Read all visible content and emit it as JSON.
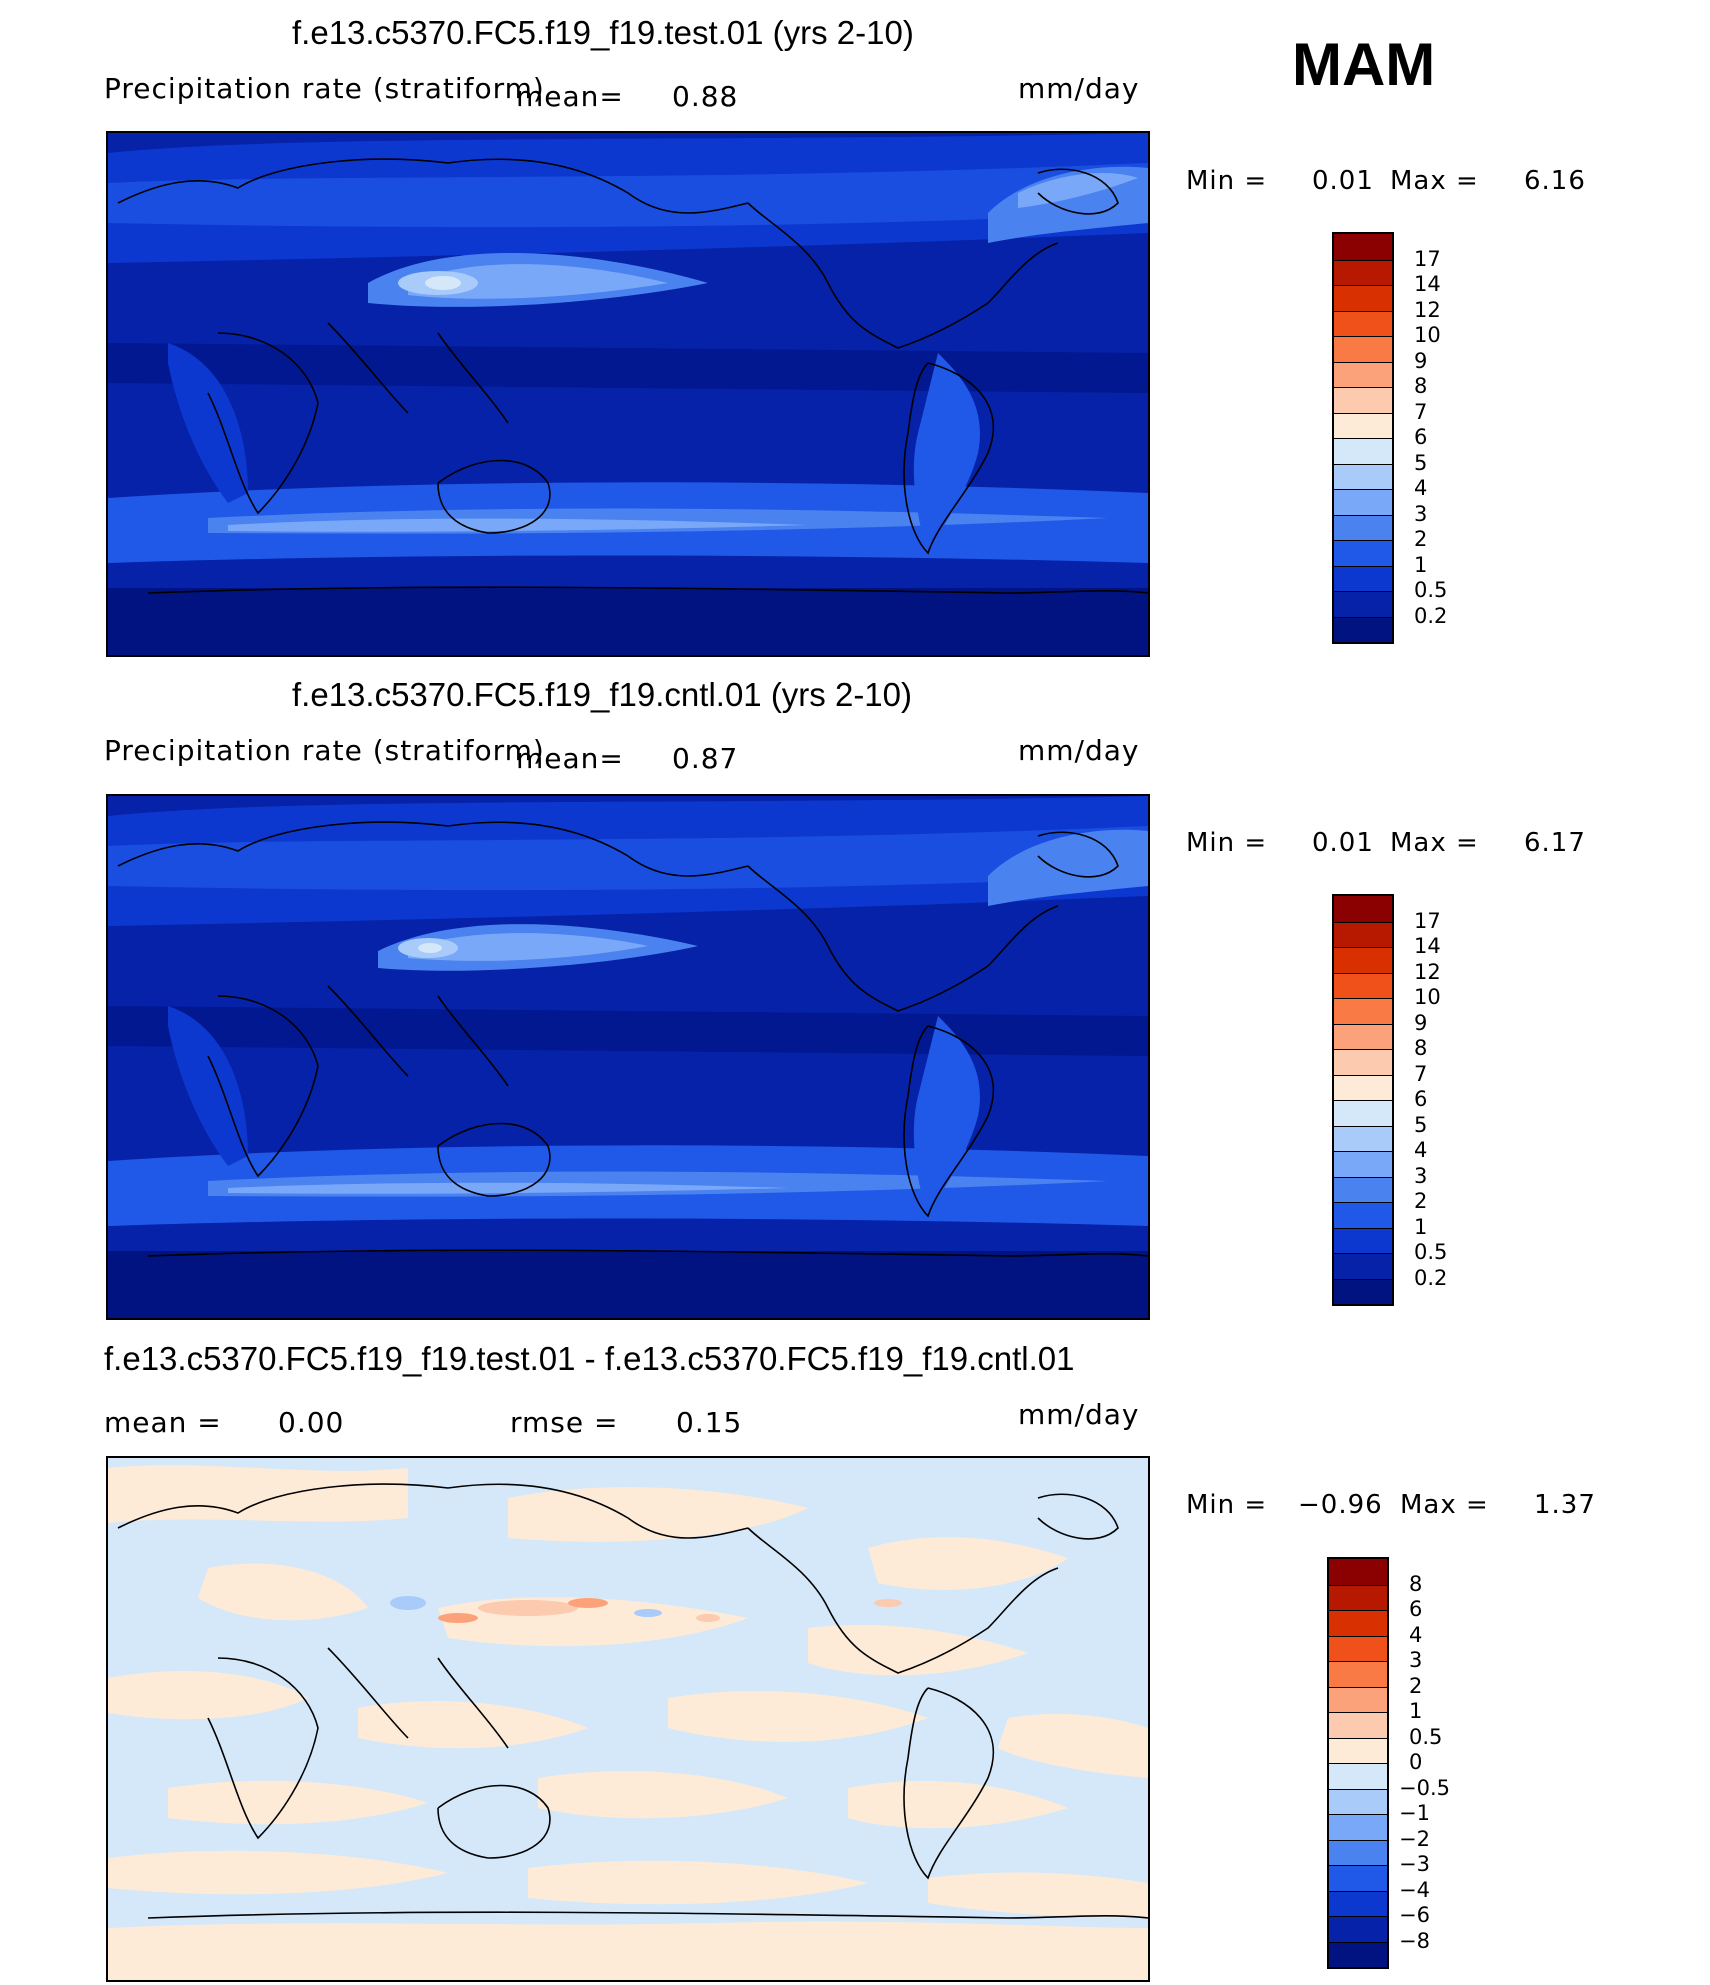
{
  "season": "MAM",
  "panels": [
    {
      "title": "f.e13.c5370.FC5.f19_f19.test.01 (yrs 2-10)",
      "variable": "Precipitation rate (stratiform)",
      "mean_label": "mean=",
      "mean_value": "0.88",
      "units": "mm/day",
      "min_label": "Min =",
      "min_value": "0.01",
      "max_label": "Max =",
      "max_value": "6.16",
      "colorbar": {
        "labels": [
          "17",
          "14",
          "12",
          "10",
          "9",
          "8",
          "7",
          "6",
          "5",
          "4",
          "3",
          "2",
          "1",
          "0.5",
          "0.2"
        ],
        "colors": [
          "#8b0000",
          "#b71800",
          "#d83000",
          "#f0501a",
          "#fa7a45",
          "#fca27a",
          "#fccaae",
          "#fdebd8",
          "#d4e8fa",
          "#a8cbfa",
          "#7aa8f8",
          "#4a82f0",
          "#2058e8",
          "#0d38d0",
          "#0522a8",
          "#001380"
        ]
      }
    },
    {
      "title": "f.e13.c5370.FC5.f19_f19.cntl.01 (yrs 2-10)",
      "variable": "Precipitation rate (stratiform)",
      "mean_label": "mean=",
      "mean_value": "0.87",
      "units": "mm/day",
      "min_label": "Min =",
      "min_value": "0.01",
      "max_label": "Max =",
      "max_value": "6.17",
      "colorbar": {
        "labels": [
          "17",
          "14",
          "12",
          "10",
          "9",
          "8",
          "7",
          "6",
          "5",
          "4",
          "3",
          "2",
          "1",
          "0.5",
          "0.2"
        ],
        "colors": [
          "#8b0000",
          "#b71800",
          "#d83000",
          "#f0501a",
          "#fa7a45",
          "#fca27a",
          "#fccaae",
          "#fdebd8",
          "#d4e8fa",
          "#a8cbfa",
          "#7aa8f8",
          "#4a82f0",
          "#2058e8",
          "#0d38d0",
          "#0522a8",
          "#001380"
        ]
      }
    },
    {
      "title": "f.e13.c5370.FC5.f19_f19.test.01 - f.e13.c5370.FC5.f19_f19.cntl.01",
      "mean_label": "mean =",
      "mean_value": "0.00",
      "rmse_label": "rmse =",
      "rmse_value": "0.15",
      "units": "mm/day",
      "min_label": "Min =",
      "min_value": "−0.96",
      "max_label": "Max =",
      "max_value": "1.37",
      "colorbar": {
        "labels": [
          "8",
          "6",
          "4",
          "3",
          "2",
          "1",
          "0.5",
          "0",
          "−0.5",
          "−1",
          "−2",
          "−3",
          "−4",
          "−6",
          "−8"
        ],
        "colors": [
          "#8b0000",
          "#b71800",
          "#d83000",
          "#f0501a",
          "#fa7a45",
          "#fca27a",
          "#fccaae",
          "#fdebd8",
          "#d4e8fa",
          "#a8cbfa",
          "#7aa8f8",
          "#4a82f0",
          "#2058e8",
          "#0d38d0",
          "#0522a8",
          "#001380"
        ]
      }
    }
  ]
}
